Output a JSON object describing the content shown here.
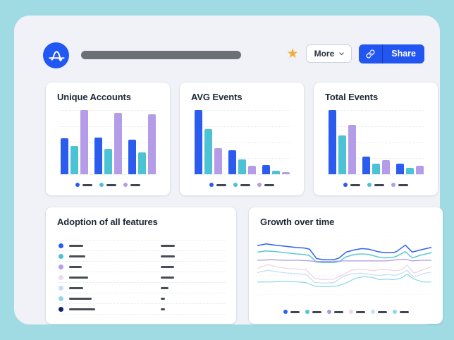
{
  "header": {
    "more_label": "More",
    "share_label": "Share"
  },
  "colors": {
    "page_bg": "#A0DBE4",
    "panel_bg": "#F0F2F7",
    "card_bg": "#FFFFFF",
    "brand_blue": "#2157F2",
    "share_button_bg": "#2356F0",
    "star_gold": "#F2AC3C",
    "title_text": "#1E2837",
    "placeholder_gray": "#6B7076",
    "legend_dash": "#3F4650",
    "bar_blue": "#2B5CEE",
    "bar_teal": "#4CC3D5",
    "bar_purple": "#B59CE8",
    "pale_pink": "#ECD6E7",
    "pale_blue": "#C6DFF6",
    "light_cyan": "#8FD9E3",
    "navy": "#131F72"
  },
  "chart_data": [
    {
      "id": "unique_accounts",
      "type": "bar",
      "title": "Unique Accounts",
      "groups": 3,
      "legend_placeholder": true,
      "series": [
        {
          "name": "blue",
          "color": "#2B5CEE",
          "values": [
            56,
            57,
            54
          ]
        },
        {
          "name": "teal",
          "color": "#4CC3D5",
          "values": [
            44,
            40,
            34
          ]
        },
        {
          "name": "purple",
          "color": "#B59CE8",
          "values": [
            100,
            96,
            93
          ]
        }
      ]
    },
    {
      "id": "avg_events",
      "type": "bar",
      "title": "AVG Events",
      "groups": 3,
      "legend_placeholder": true,
      "series": [
        {
          "name": "blue",
          "color": "#2B5CEE",
          "values": [
            100,
            37,
            14
          ]
        },
        {
          "name": "teal",
          "color": "#4CC3D5",
          "values": [
            70,
            23,
            6
          ]
        },
        {
          "name": "purple",
          "color": "#B59CE8",
          "values": [
            41,
            13,
            3
          ]
        }
      ]
    },
    {
      "id": "total_events",
      "type": "bar",
      "title": "Total Events",
      "groups": 3,
      "legend_placeholder": true,
      "series": [
        {
          "name": "blue",
          "color": "#2B5CEE",
          "values": [
            100,
            28,
            16
          ]
        },
        {
          "name": "teal",
          "color": "#4CC3D5",
          "values": [
            61,
            16,
            10
          ]
        },
        {
          "name": "purple",
          "color": "#B59CE8",
          "values": [
            77,
            22,
            13
          ]
        }
      ]
    },
    {
      "id": "adoption",
      "type": "list",
      "title": "Adoption of all features",
      "rows": [
        {
          "dot_color": "#2B5CEE",
          "label_width": 20,
          "value_width": 20
        },
        {
          "dot_color": "#4CC3D5",
          "label_width": 23,
          "value_width": 20
        },
        {
          "dot_color": "#B59CE8",
          "label_width": 18,
          "value_width": 19
        },
        {
          "dot_color": "#EFD9EC",
          "label_width": 27,
          "value_width": 19
        },
        {
          "dot_color": "#C6DFF6",
          "label_width": 20,
          "value_width": 11
        },
        {
          "dot_color": "#8FD9E3",
          "label_width": 32,
          "value_width": 6
        },
        {
          "dot_color": "#131F72",
          "label_width": 37,
          "value_width": 6
        }
      ]
    },
    {
      "id": "growth",
      "type": "line",
      "title": "Growth over time",
      "legend_placeholder": true,
      "x_range": [
        0,
        100
      ],
      "y_range": [
        0,
        100
      ],
      "series": [
        {
          "name": "blue",
          "color": "#2E63EC",
          "width": 1.5,
          "points": [
            [
              0,
              16
            ],
            [
              5,
              13
            ],
            [
              10,
              15
            ],
            [
              16,
              17
            ],
            [
              22,
              19
            ],
            [
              27,
              20
            ],
            [
              30,
              22
            ],
            [
              34,
              38
            ],
            [
              38,
              40
            ],
            [
              44,
              40
            ],
            [
              47,
              37
            ],
            [
              51,
              27
            ],
            [
              56,
              23
            ],
            [
              60,
              21
            ],
            [
              64,
              22
            ],
            [
              69,
              26
            ],
            [
              73,
              28
            ],
            [
              78,
              28
            ],
            [
              80,
              26
            ],
            [
              85,
              15
            ],
            [
              89,
              27
            ],
            [
              94,
              23
            ],
            [
              100,
              19
            ]
          ]
        },
        {
          "name": "teal",
          "color": "#52C6D2",
          "width": 1.4,
          "points": [
            [
              0,
              27
            ],
            [
              5,
              25
            ],
            [
              10,
              26
            ],
            [
              16,
              28
            ],
            [
              22,
              30
            ],
            [
              27,
              31
            ],
            [
              30,
              33
            ],
            [
              34,
              44
            ],
            [
              38,
              45
            ],
            [
              44,
              45
            ],
            [
              47,
              43
            ],
            [
              51,
              35
            ],
            [
              56,
              31
            ],
            [
              60,
              30
            ],
            [
              64,
              31
            ],
            [
              69,
              35
            ],
            [
              73,
              37
            ],
            [
              78,
              36
            ],
            [
              80,
              34
            ],
            [
              85,
              26
            ],
            [
              89,
              37
            ],
            [
              94,
              32
            ],
            [
              100,
              28
            ]
          ]
        },
        {
          "name": "purple",
          "color": "#A99BE4",
          "width": 1.3,
          "points": [
            [
              0,
              41
            ],
            [
              8,
              40
            ],
            [
              16,
              41
            ],
            [
              24,
              41
            ],
            [
              30,
              42
            ],
            [
              34,
              43
            ],
            [
              42,
              43
            ],
            [
              50,
              42
            ],
            [
              58,
              42
            ],
            [
              66,
              42
            ],
            [
              74,
              42
            ],
            [
              80,
              40
            ],
            [
              85,
              39
            ],
            [
              89,
              42
            ],
            [
              94,
              41
            ],
            [
              100,
              41
            ]
          ]
        },
        {
          "name": "pale-pink",
          "color": "#ECD6E7",
          "width": 1.3,
          "points": [
            [
              0,
              55
            ],
            [
              6,
              48
            ],
            [
              12,
              53
            ],
            [
              18,
              55
            ],
            [
              24,
              56
            ],
            [
              28,
              57
            ],
            [
              33,
              72
            ],
            [
              38,
              74
            ],
            [
              44,
              73
            ],
            [
              49,
              66
            ],
            [
              54,
              58
            ],
            [
              59,
              56
            ],
            [
              63,
              57
            ],
            [
              67,
              59
            ],
            [
              71,
              56
            ],
            [
              75,
              57
            ],
            [
              79,
              59
            ],
            [
              83,
              57
            ],
            [
              86,
              49
            ],
            [
              90,
              63
            ],
            [
              95,
              57
            ],
            [
              100,
              52
            ]
          ]
        },
        {
          "name": "pale-blue",
          "color": "#C6DFF6",
          "width": 1.3,
          "points": [
            [
              0,
              62
            ],
            [
              6,
              58
            ],
            [
              12,
              61
            ],
            [
              18,
              63
            ],
            [
              24,
              64
            ],
            [
              28,
              65
            ],
            [
              33,
              79
            ],
            [
              38,
              80
            ],
            [
              44,
              79
            ],
            [
              49,
              69
            ],
            [
              54,
              64
            ],
            [
              59,
              63
            ],
            [
              63,
              64
            ],
            [
              67,
              66
            ],
            [
              71,
              67
            ],
            [
              75,
              65
            ],
            [
              79,
              67
            ],
            [
              83,
              63
            ],
            [
              86,
              58
            ],
            [
              90,
              70
            ],
            [
              95,
              64
            ],
            [
              100,
              61
            ]
          ]
        },
        {
          "name": "cyan",
          "color": "#8FD9E3",
          "width": 1.3,
          "points": [
            [
              0,
              78
            ],
            [
              8,
              78
            ],
            [
              16,
              77
            ],
            [
              24,
              78
            ],
            [
              28,
              79
            ],
            [
              33,
              85
            ],
            [
              38,
              86
            ],
            [
              46,
              85
            ],
            [
              51,
              80
            ],
            [
              56,
              72
            ],
            [
              61,
              69
            ],
            [
              66,
              70
            ],
            [
              70,
              74
            ],
            [
              74,
              73
            ],
            [
              78,
              74
            ],
            [
              82,
              72
            ],
            [
              86,
              65
            ],
            [
              90,
              73
            ],
            [
              95,
              78
            ],
            [
              100,
              78
            ]
          ]
        }
      ]
    }
  ]
}
